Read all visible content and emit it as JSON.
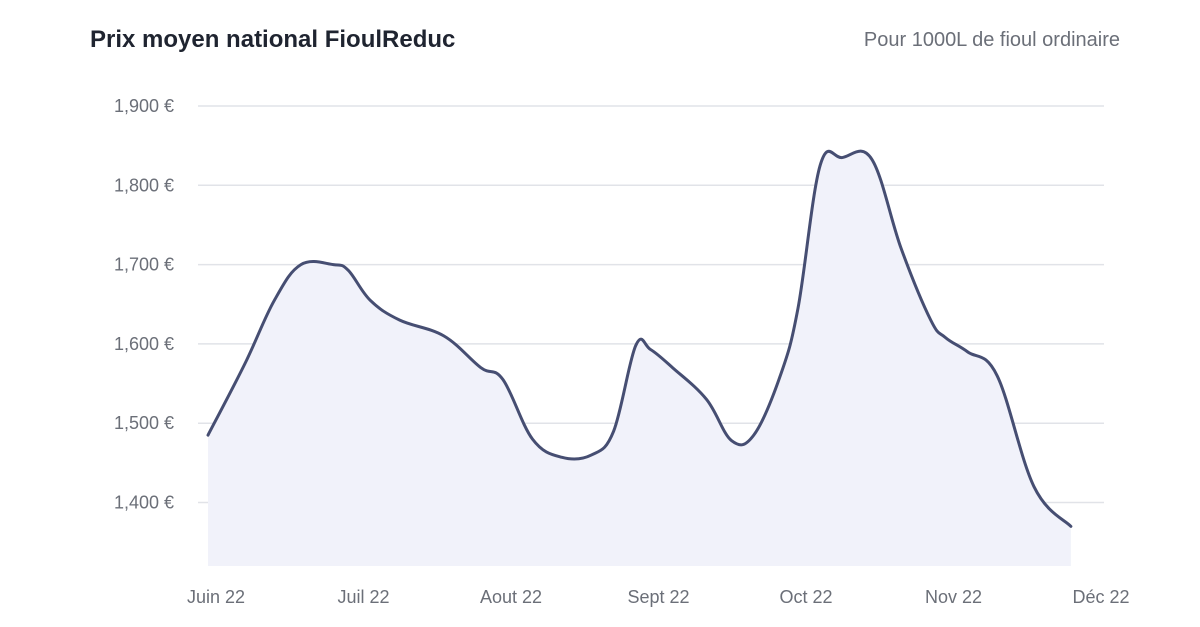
{
  "chart_data": {
    "type": "area",
    "title": "Prix moyen national FioulReduc",
    "subtitle": "Pour 1000L de fioul ordinaire",
    "categories": [
      "Juin 22",
      "Juil 22",
      "Aout 22",
      "Sept 22",
      "Oct 22",
      "Nov 22",
      "Déc 22"
    ],
    "y_ticks": [
      "1,400 €",
      "1,500 €",
      "1,600 €",
      "1,700 €",
      "1,800 €",
      "1,900 €"
    ],
    "y_tick_values": [
      1400,
      1500,
      1600,
      1700,
      1800,
      1900
    ],
    "ylim": [
      1320,
      1900
    ],
    "xlim": [
      0,
      6
    ],
    "grid": true,
    "series": [
      {
        "values": [
          {
            "x": 0.0,
            "y": 1485
          },
          {
            "x": 0.25,
            "y": 1575
          },
          {
            "x": 0.45,
            "y": 1655
          },
          {
            "x": 0.63,
            "y": 1700
          },
          {
            "x": 0.85,
            "y": 1700
          },
          {
            "x": 0.95,
            "y": 1693
          },
          {
            "x": 1.1,
            "y": 1655
          },
          {
            "x": 1.3,
            "y": 1630
          },
          {
            "x": 1.6,
            "y": 1610
          },
          {
            "x": 1.85,
            "y": 1570
          },
          {
            "x": 2.0,
            "y": 1555
          },
          {
            "x": 2.2,
            "y": 1480
          },
          {
            "x": 2.4,
            "y": 1457
          },
          {
            "x": 2.6,
            "y": 1460
          },
          {
            "x": 2.75,
            "y": 1490
          },
          {
            "x": 2.9,
            "y": 1598
          },
          {
            "x": 3.0,
            "y": 1593
          },
          {
            "x": 3.15,
            "y": 1570
          },
          {
            "x": 3.38,
            "y": 1530
          },
          {
            "x": 3.55,
            "y": 1478
          },
          {
            "x": 3.7,
            "y": 1485
          },
          {
            "x": 3.88,
            "y": 1560
          },
          {
            "x": 4.0,
            "y": 1645
          },
          {
            "x": 4.15,
            "y": 1825
          },
          {
            "x": 4.3,
            "y": 1835
          },
          {
            "x": 4.5,
            "y": 1833
          },
          {
            "x": 4.7,
            "y": 1720
          },
          {
            "x": 4.9,
            "y": 1630
          },
          {
            "x": 5.0,
            "y": 1608
          },
          {
            "x": 5.15,
            "y": 1590
          },
          {
            "x": 5.35,
            "y": 1560
          },
          {
            "x": 5.6,
            "y": 1420
          },
          {
            "x": 5.85,
            "y": 1370
          }
        ]
      }
    ],
    "colors": {
      "line": "#464e72",
      "fill": "#f1f2fa",
      "grid": "#e1e3e8",
      "tick": "#6b6f78"
    }
  }
}
